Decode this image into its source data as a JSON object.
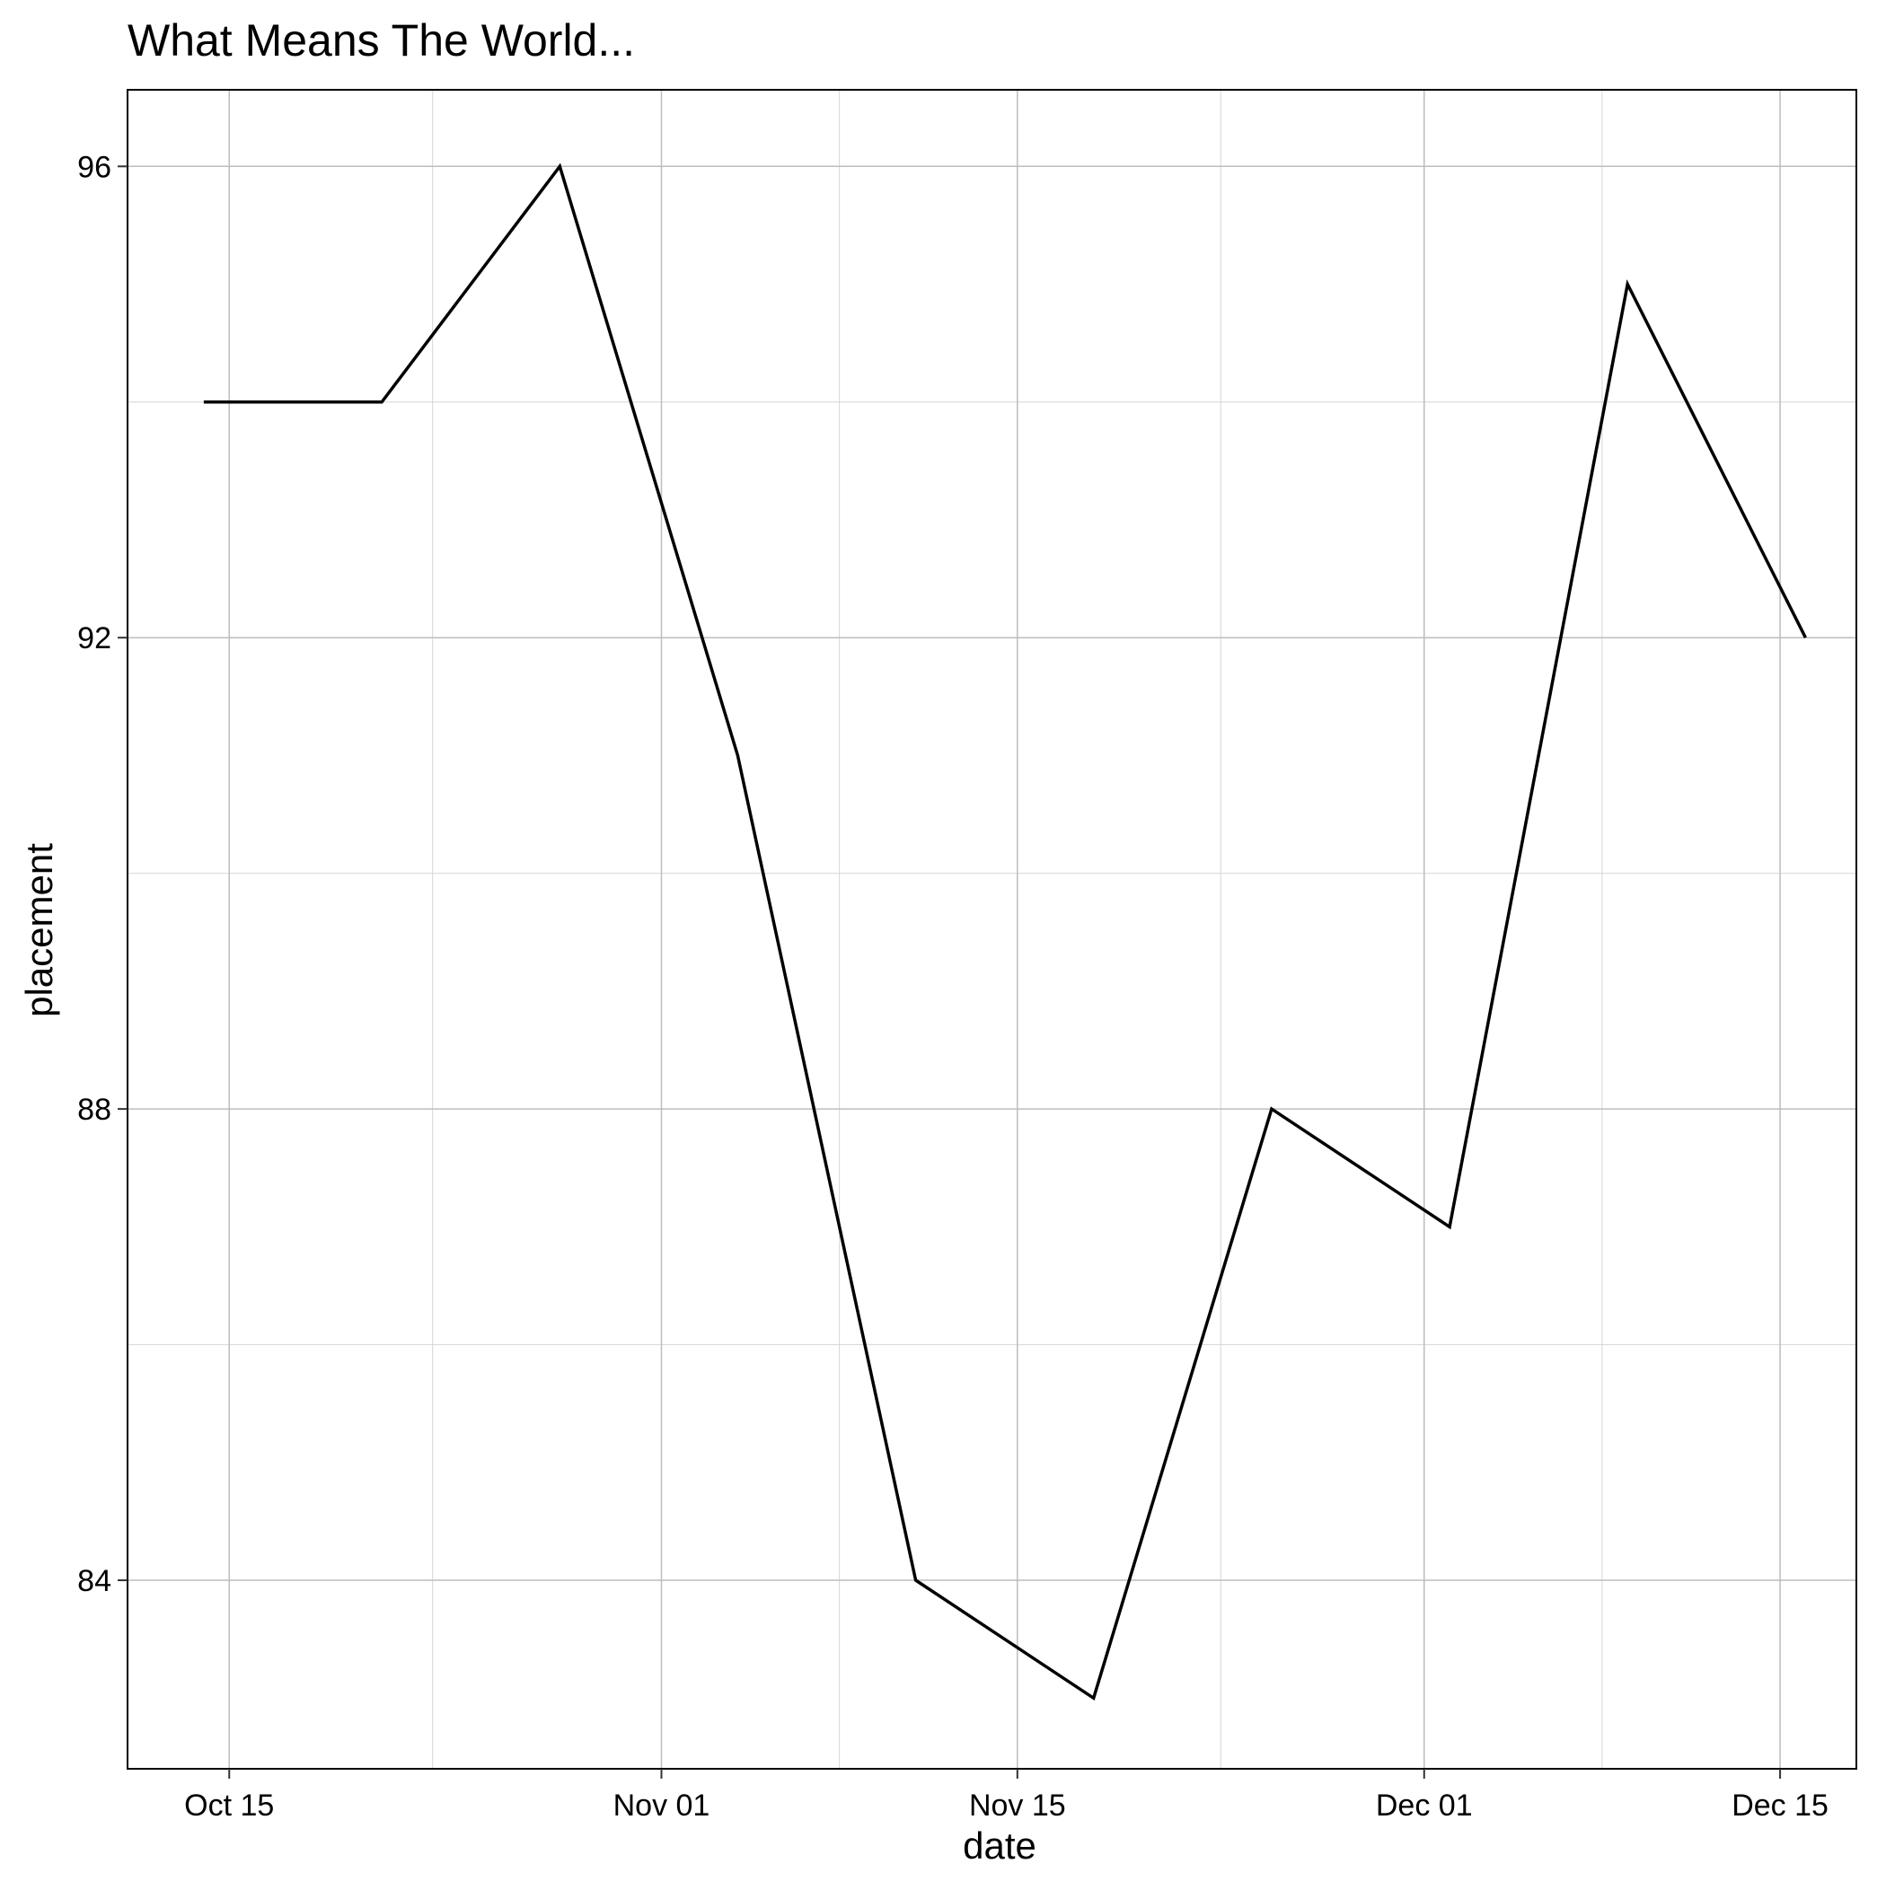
{
  "chart_data": {
    "type": "line",
    "title": "What Means The World...",
    "xlabel": "date",
    "ylabel": "placement",
    "x_axis_type": "date",
    "xlim": [
      "2021-10-11",
      "2021-12-18"
    ],
    "ylim": [
      82.4,
      96.65
    ],
    "x_ticks": [
      {
        "date": "2021-10-15",
        "label": "Oct 15"
      },
      {
        "date": "2021-11-01",
        "label": "Nov 01"
      },
      {
        "date": "2021-11-15",
        "label": "Nov 15"
      },
      {
        "date": "2021-12-01",
        "label": "Dec 01"
      },
      {
        "date": "2021-12-15",
        "label": "Dec 15"
      }
    ],
    "x_minor_ticks": [
      "2021-10-23",
      "2021-11-08",
      "2021-11-23",
      "2021-12-08"
    ],
    "y_ticks": [
      84,
      88,
      92,
      96
    ],
    "y_minor_ticks": [
      86,
      90,
      94
    ],
    "grid": true,
    "line_color": "#000000",
    "series": [
      {
        "x": [
          "2021-10-14",
          "2021-10-21",
          "2021-10-28",
          "2021-11-04",
          "2021-11-11",
          "2021-11-18",
          "2021-11-25",
          "2021-12-02",
          "2021-12-09",
          "2021-12-16"
        ],
        "values": [
          94,
          94,
          96,
          91,
          84,
          83,
          88,
          87,
          95,
          92
        ]
      }
    ]
  }
}
